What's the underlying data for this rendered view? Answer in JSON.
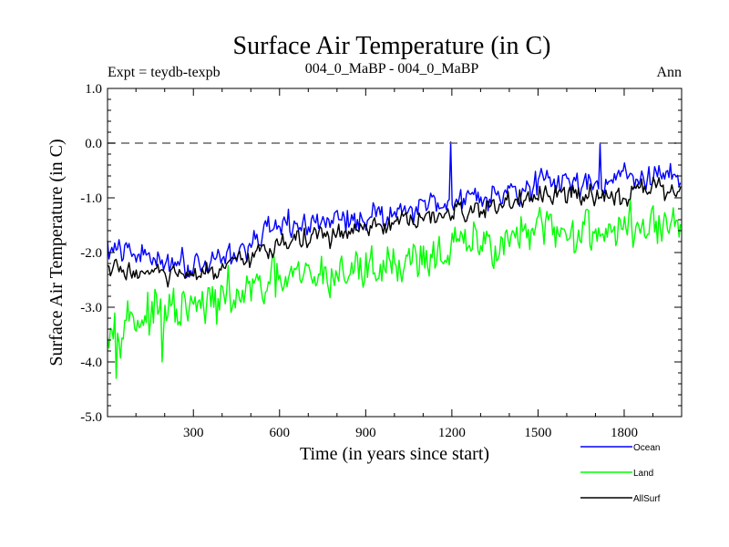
{
  "chart_data": {
    "type": "line",
    "title": "Surface Air Temperature (in C)",
    "subtitle_left": "Expt = teydb-texpb",
    "subtitle_center": "004_0_MaBP - 004_0_MaBP",
    "subtitle_right": "Ann",
    "xlabel": "Time (in years since start)",
    "ylabel": "Surface Air Temperature (in C)",
    "xlim": [
      1,
      2000
    ],
    "ylim": [
      -5.0,
      1.0
    ],
    "x_ticks": [
      300,
      600,
      900,
      1200,
      1500,
      1800
    ],
    "x_tick_labels": [
      "300",
      "600",
      "900",
      "1200",
      "1500",
      "1800"
    ],
    "y_ticks": [
      1.0,
      0.0,
      -1.0,
      -2.0,
      -3.0,
      -4.0,
      -5.0
    ],
    "y_tick_labels": [
      "1.0",
      "0.0",
      "-1.0",
      "-2.0",
      "-3.0",
      "-4.0",
      "-5.0"
    ],
    "reference_line": {
      "y": 0.0,
      "style": "dashed"
    },
    "legend_position": "bottom-right",
    "sample_step_years": 5,
    "series": [
      {
        "name": "Ocean",
        "color": "#0000ff",
        "trend_years": [
          1,
          100,
          300,
          450,
          600,
          900,
          1200,
          1500,
          1800,
          2000
        ],
        "trend_values": [
          -1.95,
          -2.05,
          -2.2,
          -2.0,
          -1.55,
          -1.35,
          -1.05,
          -0.75,
          -0.65,
          -0.6
        ],
        "noise_amplitude": 0.22,
        "spikes": [
          {
            "x": 1195,
            "y": 0.02
          },
          {
            "x": 1715,
            "y": 0.0
          }
        ]
      },
      {
        "name": "Land",
        "color": "#00ff00",
        "trend_years": [
          1,
          100,
          300,
          450,
          600,
          900,
          1200,
          1500,
          1800,
          2000
        ],
        "trend_values": [
          -3.2,
          -3.2,
          -3.05,
          -2.8,
          -2.55,
          -2.3,
          -1.95,
          -1.65,
          -1.55,
          -1.5
        ],
        "noise_amplitude": 0.38,
        "spikes": [
          {
            "x": 30,
            "y": -4.3
          },
          {
            "x": 190,
            "y": -4.0
          }
        ]
      },
      {
        "name": "AllSurf",
        "color": "#000000",
        "trend_years": [
          1,
          100,
          300,
          450,
          600,
          900,
          1200,
          1500,
          1800,
          2000
        ],
        "trend_values": [
          -2.3,
          -2.35,
          -2.45,
          -2.25,
          -1.8,
          -1.6,
          -1.3,
          -1.0,
          -0.9,
          -0.85
        ],
        "noise_amplitude": 0.18,
        "spikes": []
      }
    ]
  }
}
